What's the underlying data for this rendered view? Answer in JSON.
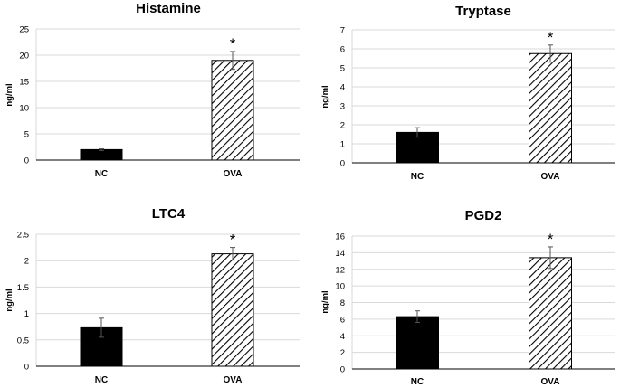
{
  "chart_data": [
    {
      "type": "bar",
      "title": "Histamine",
      "ylabel": "ng/ml",
      "categories": [
        "NC",
        "OVA"
      ],
      "values": [
        2.0,
        19.0
      ],
      "errors": [
        0.15,
        1.7
      ],
      "significance": [
        "",
        "*"
      ],
      "ylim": [
        0,
        25
      ],
      "yticks": [
        0,
        5,
        10,
        15,
        20,
        25
      ],
      "yticklabels": [
        "0",
        "5",
        "10",
        "15",
        "20",
        "25"
      ],
      "grid": true,
      "fills": [
        "solid-black",
        "diagonal-hatch"
      ]
    },
    {
      "type": "bar",
      "title": "Tryptase",
      "ylabel": "ng/ml",
      "categories": [
        "NC",
        "OVA"
      ],
      "values": [
        1.6,
        5.75
      ],
      "errors": [
        0.25,
        0.45
      ],
      "significance": [
        "",
        "*"
      ],
      "ylim": [
        0,
        7
      ],
      "yticks": [
        0,
        1,
        2,
        3,
        4,
        5,
        6,
        7
      ],
      "yticklabels": [
        "0",
        "1",
        "2",
        "3",
        "4",
        "5",
        "6",
        "7"
      ],
      "grid": true,
      "fills": [
        "solid-black",
        "diagonal-hatch"
      ]
    },
    {
      "type": "bar",
      "title": "LTC4",
      "ylabel": "ng/ml",
      "categories": [
        "NC",
        "OVA"
      ],
      "values": [
        0.73,
        2.13
      ],
      "errors": [
        0.18,
        0.12
      ],
      "significance": [
        "",
        "*"
      ],
      "ylim": [
        0,
        2.5
      ],
      "yticks": [
        0,
        0.5,
        1,
        1.5,
        2,
        2.5
      ],
      "yticklabels": [
        "0",
        "0.5",
        "1",
        "1.5",
        "2",
        "2.5"
      ],
      "grid": true,
      "fills": [
        "solid-black",
        "diagonal-hatch"
      ]
    },
    {
      "type": "bar",
      "title": "PGD2",
      "ylabel": "ng/ml",
      "categories": [
        "NC",
        "OVA"
      ],
      "values": [
        6.3,
        13.4
      ],
      "errors": [
        0.7,
        1.3
      ],
      "significance": [
        "",
        "*"
      ],
      "ylim": [
        0,
        16
      ],
      "yticks": [
        0,
        2,
        4,
        6,
        8,
        10,
        12,
        14,
        16
      ],
      "yticklabels": [
        "0",
        "2",
        "4",
        "6",
        "8",
        "10",
        "12",
        "14",
        "16"
      ],
      "grid": true,
      "fills": [
        "solid-black",
        "diagonal-hatch"
      ]
    }
  ],
  "colors": {
    "solid_bar": "#000000",
    "hatch_line": "#000000",
    "grid": "#d9d9d9",
    "error_bar": "#555555"
  }
}
